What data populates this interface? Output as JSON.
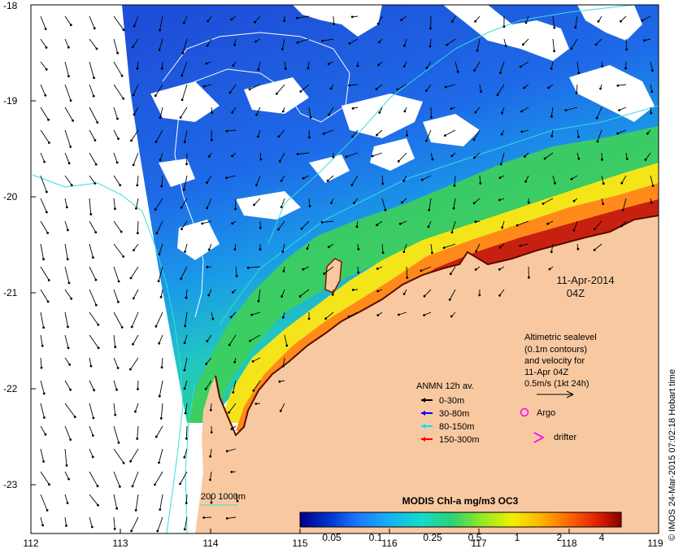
{
  "map": {
    "date_label": "11-Apr-2014",
    "time_label": "04Z",
    "credit": "© IMOS 24-Mar-2015 07:02:18 Hobart time",
    "x_ticks": [
      "112",
      "113",
      "114",
      "115",
      "116",
      "117",
      "118",
      "119"
    ],
    "y_ticks": [
      "-18",
      "-19",
      "-20",
      "-21",
      "-22",
      "-23"
    ],
    "altimetry": {
      "line1": "Altimetric sealevel",
      "line2": "(0.1m contours)",
      "line3": "and velocity for",
      "line4": "11-Apr 04Z",
      "scale_label": "0.5m/s (1kt 24h)"
    },
    "anmn": {
      "title": "ANMN 12h av.",
      "items": [
        {
          "label": "0-30m",
          "color": "#000000"
        },
        {
          "label": "30-80m",
          "color": "#0000ff"
        },
        {
          "label": "80-150m",
          "color": "#00e5ff"
        },
        {
          "label": "150-300m",
          "color": "#ff0000"
        }
      ]
    },
    "markers": {
      "argo": "Argo",
      "argo_color": "#ff00ff",
      "drifter": "drifter",
      "drifter_color": "#ff00ff"
    },
    "isobath_label": "200  1000m",
    "isobath_color": "#33dddd",
    "land_color": "#f8c9a1",
    "colorbar": {
      "title": "MODIS Chl-a mg/m3 OC3",
      "ticks": [
        "0.05",
        "0.1",
        "0.25",
        "0.5",
        "1",
        "2",
        "4"
      ],
      "colors": [
        "#00008b",
        "#0033cc",
        "#1e78ff",
        "#14b4f0",
        "#14dcc8",
        "#28d278",
        "#8ce628",
        "#f0f000",
        "#ffb400",
        "#ff6400",
        "#dc1e00",
        "#8b0000"
      ]
    }
  }
}
